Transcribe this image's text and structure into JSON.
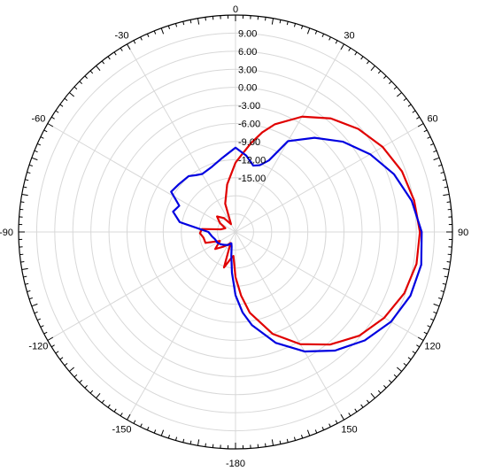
{
  "chart_data": {
    "type": "polar-line",
    "angle_unit": "degrees",
    "angle_zero": "top",
    "angle_direction": "clockwise",
    "angle_tick_labels": [
      "0",
      "30",
      "60",
      "90",
      "120",
      "150",
      "-180",
      "-150",
      "-120",
      "-90",
      "-60",
      "-30"
    ],
    "radial_tick_labels": [
      "9.00",
      "6.00",
      "3.00",
      "0.00",
      "-3.00",
      "-6.00",
      "-9.00",
      "-12.00",
      "-15.00"
    ],
    "rlim": [
      -24,
      12
    ],
    "grid": true,
    "legend": "none",
    "series": [
      {
        "color": "#e00000",
        "points": [
          [
            0,
            -12.5
          ],
          [
            5,
            -11.0
          ],
          [
            10,
            -9.0
          ],
          [
            15,
            -6.9
          ],
          [
            20,
            -5.0
          ],
          [
            30,
            -1.9
          ],
          [
            40,
            0.6
          ],
          [
            50,
            2.6
          ],
          [
            60,
            4.2
          ],
          [
            70,
            5.4
          ],
          [
            80,
            6.1
          ],
          [
            90,
            6.6
          ],
          [
            100,
            6.5
          ],
          [
            110,
            5.8
          ],
          [
            120,
            4.5
          ],
          [
            130,
            2.8
          ],
          [
            140,
            0.4
          ],
          [
            150,
            -2.5
          ],
          [
            160,
            -6.0
          ],
          [
            170,
            -10.4
          ],
          [
            175,
            -13.4
          ],
          [
            180,
            -16.5
          ],
          [
            -175,
            -20.0
          ],
          [
            -170,
            -19.5
          ],
          [
            -162,
            -17.8
          ],
          [
            -156,
            -22.0
          ],
          [
            -150,
            -21.6
          ],
          [
            -140,
            -20.8
          ],
          [
            -130,
            -19.6
          ],
          [
            -120,
            -21.0
          ],
          [
            -110,
            -18.7
          ],
          [
            -100,
            -18.6
          ],
          [
            -92,
            -18.1
          ],
          [
            -85,
            -18.4
          ],
          [
            -80,
            -21.5
          ],
          [
            -70,
            -22.2
          ],
          [
            -60,
            -21.0
          ],
          [
            -50,
            -20.0
          ],
          [
            -40,
            -21.0
          ],
          [
            -30,
            -22.5
          ],
          [
            -20,
            -19.0
          ],
          [
            -10,
            -16.0
          ]
        ]
      },
      {
        "color": "#0000e0",
        "points": [
          [
            0,
            -10.0
          ],
          [
            8,
            -11.2
          ],
          [
            15,
            -12.6
          ],
          [
            20,
            -12.2
          ],
          [
            25,
            -10.9
          ],
          [
            30,
            -6.6
          ],
          [
            40,
            -3.6
          ],
          [
            50,
            -0.7
          ],
          [
            60,
            1.8
          ],
          [
            70,
            4.0
          ],
          [
            80,
            5.7
          ],
          [
            90,
            6.9
          ],
          [
            100,
            7.3
          ],
          [
            110,
            6.9
          ],
          [
            120,
            5.8
          ],
          [
            130,
            4.0
          ],
          [
            140,
            1.7
          ],
          [
            150,
            -1.1
          ],
          [
            160,
            -4.4
          ],
          [
            170,
            -8.3
          ],
          [
            175,
            -10.6
          ],
          [
            180,
            -13.5
          ],
          [
            -175,
            -17.2
          ],
          [
            -170,
            -20.0
          ],
          [
            -165,
            -21.5
          ],
          [
            -160,
            -22.0
          ],
          [
            -150,
            -21.5
          ],
          [
            -140,
            -21.2
          ],
          [
            -130,
            -20.8
          ],
          [
            -120,
            -20.5
          ],
          [
            -110,
            -20.4
          ],
          [
            -100,
            -20.0
          ],
          [
            -90,
            -19.5
          ],
          [
            -80,
            -14.6
          ],
          [
            -72,
            -13.1
          ],
          [
            -65,
            -13.7
          ],
          [
            -58,
            -11.4
          ],
          [
            -50,
            -11.7
          ],
          [
            -40,
            -11.9
          ],
          [
            -35,
            -12.5
          ],
          [
            -30,
            -12.9
          ],
          [
            -20,
            -12.5
          ],
          [
            -10,
            -11.5
          ]
        ]
      }
    ]
  }
}
